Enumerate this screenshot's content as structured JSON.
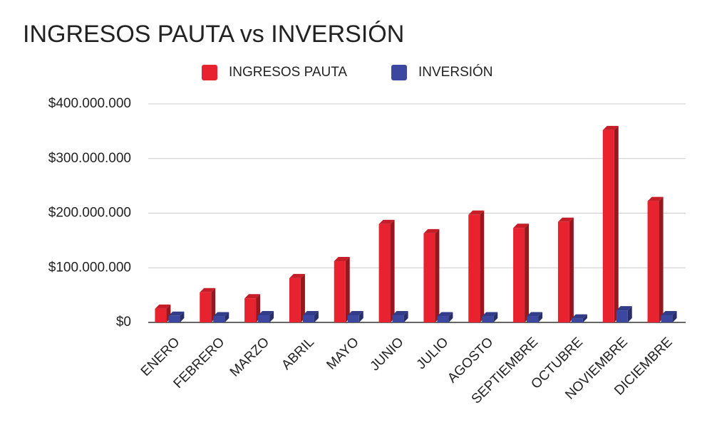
{
  "chart_data": {
    "type": "bar3d",
    "title": "INGRESOS PAUTA vs INVERSIÓN",
    "categories": [
      "ENERO",
      "FEBRERO",
      "MARZO",
      "ABRIL",
      "MAYO",
      "JUNIO",
      "JULIO",
      "AGOSTO",
      "SEPTIEMBRE",
      "OCTUBRE",
      "NOVIEMBRE",
      "DICIEMBRE"
    ],
    "series": [
      {
        "name": "INGRESOS PAUTA",
        "color": "#e8232f",
        "values": [
          25000000,
          55000000,
          44000000,
          81000000,
          112000000,
          180000000,
          163000000,
          197000000,
          173000000,
          184000000,
          352000000,
          222000000
        ]
      },
      {
        "name": "INVERSIÓN",
        "color": "#3c47a0",
        "values": [
          12000000,
          11000000,
          13000000,
          13000000,
          13000000,
          13000000,
          11000000,
          11000000,
          11000000,
          7000000,
          22000000,
          13000000
        ]
      }
    ],
    "ylim": [
      0,
      400000000
    ],
    "yticks": [
      {
        "value": 0,
        "label": "$0"
      },
      {
        "value": 100000000,
        "label": "$100.000.000"
      },
      {
        "value": 200000000,
        "label": "$200.000.000"
      },
      {
        "value": 300000000,
        "label": "$300.000.000"
      },
      {
        "value": 400000000,
        "label": "$400.000.000"
      }
    ],
    "grid": true,
    "legend": "top"
  }
}
